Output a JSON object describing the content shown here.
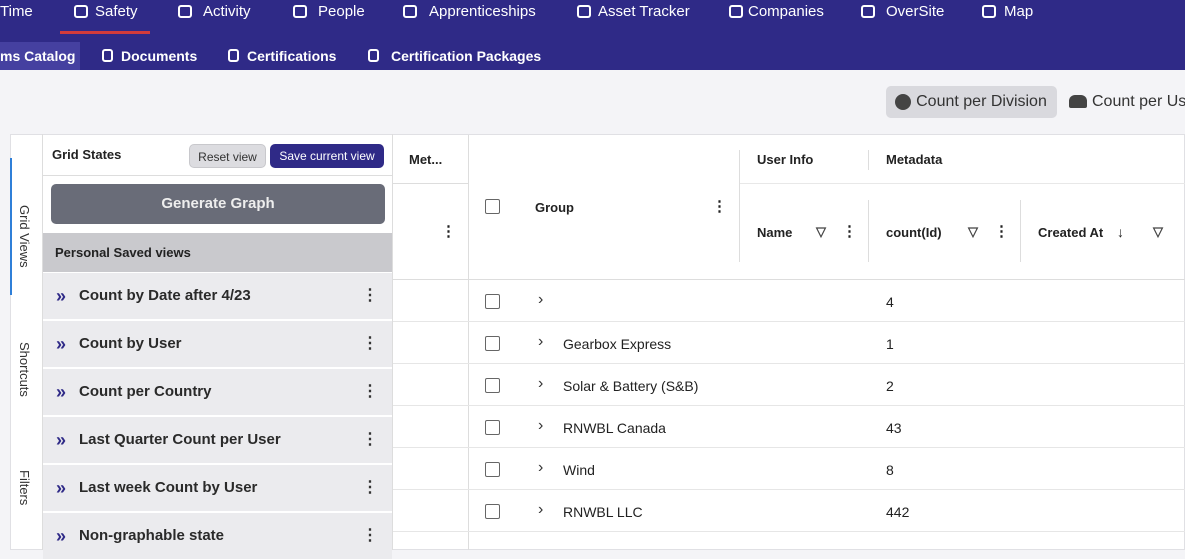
{
  "nav": {
    "primary": [
      "Time",
      "Safety",
      "Activity",
      "People",
      "Apprenticeships",
      "Asset Tracker",
      "Companies",
      "OverSite",
      "Map"
    ],
    "secondary": [
      "ms Catalog",
      "Documents",
      "Certifications",
      "Certification Packages"
    ]
  },
  "view_buttons": [
    "Count per Division",
    "Count per Us"
  ],
  "side_tabs": [
    "Grid Views",
    "Shortcuts",
    "Filters"
  ],
  "panel": {
    "title": "Grid States",
    "reset": "Reset view",
    "save": "Save current view",
    "generate": "Generate Graph",
    "section": "Personal Saved views",
    "items": [
      "Count by Date after 4/23",
      "Count by User",
      "Count per Country",
      "Last Quarter Count per User",
      "Last week Count by User",
      "Non-graphable state"
    ]
  },
  "grid": {
    "columns": {
      "meta": "Met...",
      "group": "Group",
      "user_info": "User Info",
      "metadata": "Metadata",
      "name": "Name",
      "count": "count(Id)",
      "created": "Created At"
    },
    "rows": [
      {
        "group": null,
        "count": 4
      },
      {
        "group": "Gearbox Express",
        "count": 1
      },
      {
        "group": "Solar & Battery (S&B)",
        "count": 2
      },
      {
        "group": "RNWBL Canada",
        "count": 43
      },
      {
        "group": "Wind",
        "count": 8
      },
      {
        "group": "RNWBL LLC",
        "count": 442
      }
    ]
  }
}
